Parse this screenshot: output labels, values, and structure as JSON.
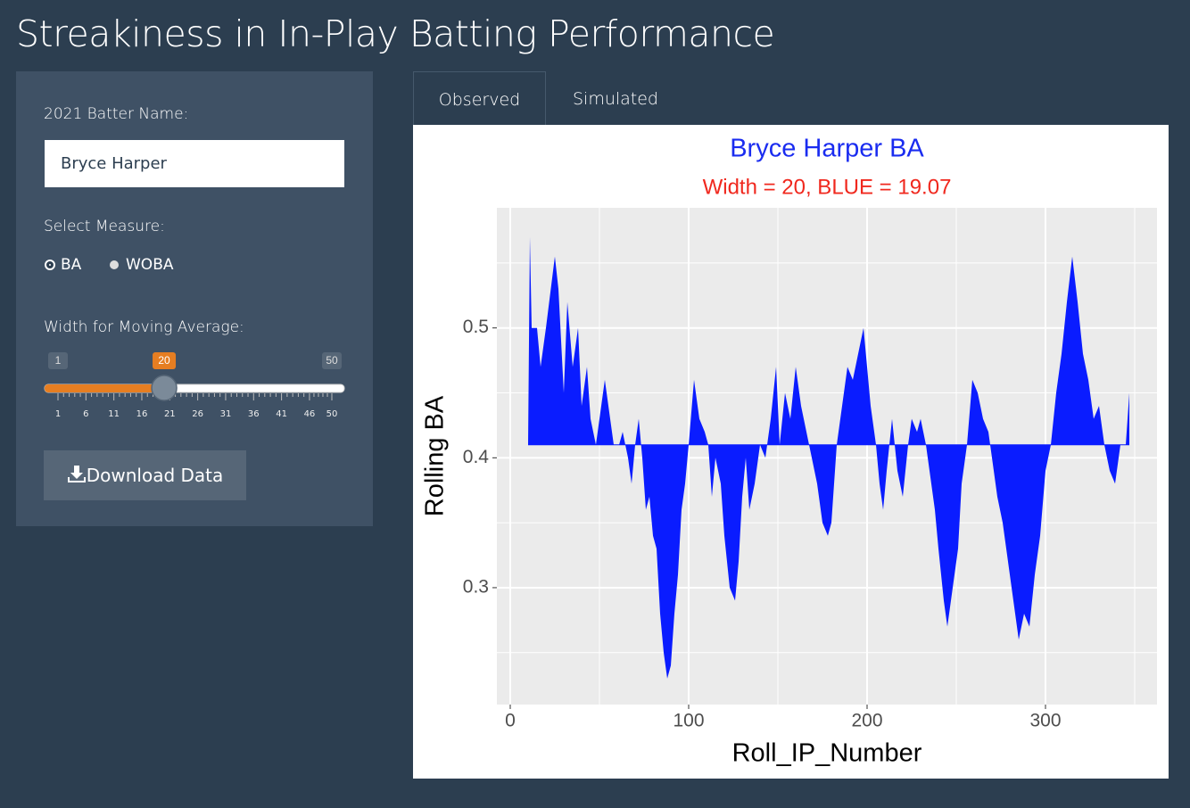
{
  "header": {
    "title": "Streakiness in In-Play Batting Performance"
  },
  "sidebar": {
    "name_label": "2021 Batter Name:",
    "name_value": "Bryce Harper",
    "measure_label": "Select Measure:",
    "measure_options": [
      "BA",
      "WOBA"
    ],
    "measure_selected": 0,
    "width_label": "Width for Moving Average:",
    "slider": {
      "min": 1,
      "max": 50,
      "value": 20,
      "ticks": [
        1,
        6,
        11,
        16,
        21,
        26,
        31,
        36,
        41,
        46,
        50
      ]
    },
    "button": "Download Data"
  },
  "tabs": [
    "Observed",
    "Simulated"
  ],
  "chart_data": {
    "type": "area",
    "title": "Bryce Harper BA",
    "subtitle": "Width = 20, BLUE = 19.07",
    "x_label": "Roll_IP_Number",
    "y_label": "Rolling BA",
    "color": "#0a1cff",
    "title_color": "#1a2cf0",
    "subtitle_color": "#f0281e",
    "baseline": 0.41,
    "x": [
      10,
      11,
      12,
      15,
      17,
      20,
      25,
      27,
      30,
      32,
      35,
      38,
      40,
      43,
      45,
      48,
      51,
      53,
      56,
      58,
      61,
      63,
      66,
      68,
      70,
      72,
      74,
      76,
      78,
      80,
      82,
      84,
      86,
      88,
      90,
      92,
      94,
      96,
      98,
      100,
      103,
      106,
      109,
      111,
      113,
      115,
      118,
      120,
      123,
      126,
      128,
      130,
      132,
      134,
      137,
      140,
      143,
      146,
      149,
      151,
      154,
      157,
      160,
      163,
      166,
      169,
      172,
      175,
      178,
      180,
      183,
      186,
      189,
      192,
      195,
      198,
      200,
      202,
      205,
      207,
      209,
      211,
      214,
      217,
      220,
      223,
      225,
      228,
      230,
      233,
      235,
      238,
      240,
      243,
      245,
      248,
      251,
      253,
      256,
      259,
      262,
      265,
      268,
      270,
      273,
      276,
      279,
      282,
      285,
      288,
      291,
      294,
      297,
      300,
      303,
      306,
      309,
      312,
      315,
      318,
      321,
      324,
      327,
      330,
      333,
      336,
      339,
      342,
      345,
      347
    ],
    "values": [
      0.41,
      0.57,
      0.5,
      0.5,
      0.47,
      0.5,
      0.555,
      0.53,
      0.45,
      0.52,
      0.47,
      0.5,
      0.44,
      0.47,
      0.43,
      0.41,
      0.44,
      0.46,
      0.43,
      0.41,
      0.41,
      0.42,
      0.4,
      0.38,
      0.41,
      0.43,
      0.4,
      0.36,
      0.37,
      0.34,
      0.33,
      0.28,
      0.25,
      0.23,
      0.24,
      0.28,
      0.31,
      0.36,
      0.38,
      0.41,
      0.46,
      0.43,
      0.42,
      0.41,
      0.37,
      0.4,
      0.38,
      0.34,
      0.3,
      0.29,
      0.32,
      0.37,
      0.4,
      0.36,
      0.38,
      0.41,
      0.4,
      0.43,
      0.47,
      0.41,
      0.45,
      0.43,
      0.47,
      0.44,
      0.42,
      0.4,
      0.38,
      0.35,
      0.34,
      0.35,
      0.41,
      0.44,
      0.47,
      0.46,
      0.48,
      0.5,
      0.47,
      0.44,
      0.41,
      0.38,
      0.36,
      0.39,
      0.43,
      0.39,
      0.37,
      0.41,
      0.43,
      0.42,
      0.43,
      0.41,
      0.39,
      0.36,
      0.33,
      0.29,
      0.27,
      0.3,
      0.33,
      0.38,
      0.41,
      0.46,
      0.45,
      0.43,
      0.42,
      0.4,
      0.37,
      0.35,
      0.32,
      0.29,
      0.26,
      0.28,
      0.27,
      0.31,
      0.34,
      0.39,
      0.41,
      0.45,
      0.48,
      0.52,
      0.555,
      0.52,
      0.48,
      0.46,
      0.43,
      0.44,
      0.41,
      0.39,
      0.38,
      0.41,
      0.41,
      0.45
    ],
    "xlim": [
      -7.5,
      362.5
    ],
    "ylim": [
      0.21,
      0.5925
    ],
    "xticks": [
      0,
      100,
      200,
      300
    ],
    "yticks": [
      0.3,
      0.4,
      0.5
    ],
    "xminor": [
      50,
      150,
      250,
      350
    ],
    "yminor": [
      0.25,
      0.35,
      0.45,
      0.55
    ],
    "grid": true
  }
}
